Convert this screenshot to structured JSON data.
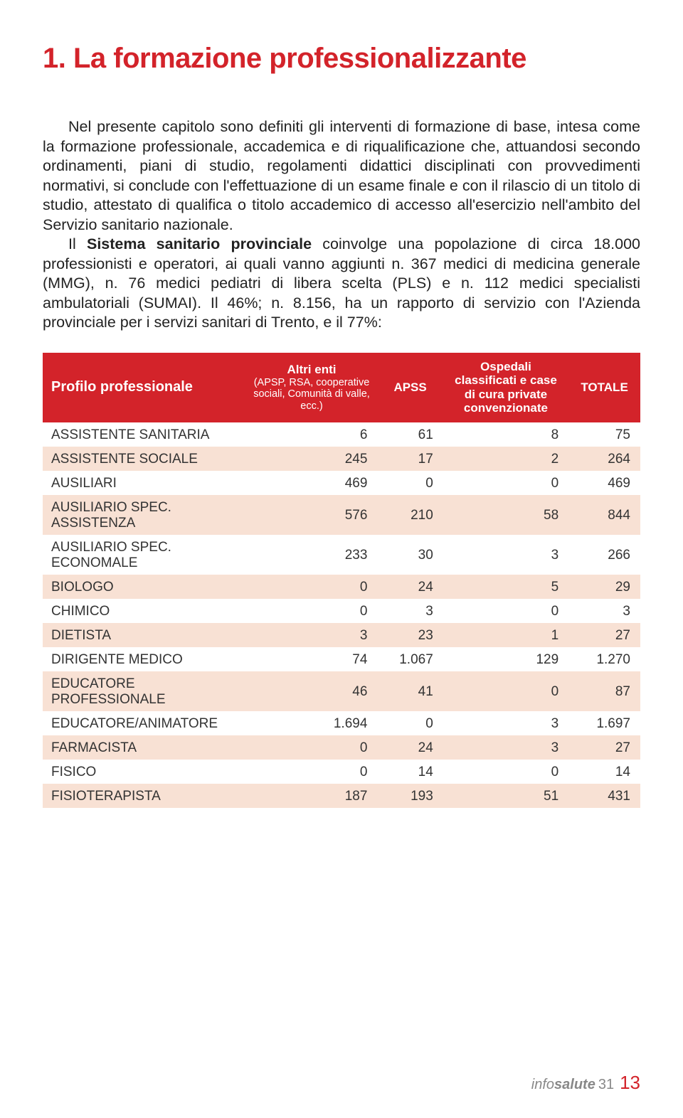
{
  "title": "1. La formazione professionalizzante",
  "paragraphs": {
    "p1": "Nel presente capitolo sono definiti gli interventi di formazione di base, intesa come la formazione professionale, accademica e di riqualificazione che, attuandosi secondo ordinamenti, piani di studio, regolamenti didattici disciplinati con provvedimenti normativi, si conclude con l'effettuazione di un esame finale e con il rilascio di un titolo di studio, attestato di qualifica o titolo accademico di accesso all'esercizio nell'ambito del Servizio sanitario nazionale.",
    "p2_a": "Il ",
    "p2_bold": "Sistema sanitario provinciale",
    "p2_b": " coinvolge una popolazione di circa 18.000 professionisti e operatori, ai quali vanno aggiunti n. 367 medici di medicina generale (MMG), n. 76 medici pediatri di libera scelta (PLS) e n. 112 medici specialisti ambulatoriali (SUMAI). Il 46%; n. 8.156, ha un rapporto di servizio con l'Azienda provinciale per i servizi sanitari di Trento, e il 77%:"
  },
  "table": {
    "headers": {
      "profile": "Profilo professionale",
      "altri_title": "Altri enti",
      "altri_sub": "(APSP, RSA, cooperative sociali, Comunità di valle, ecc.)",
      "apss": "APSS",
      "osp": "Ospedali classificati e case di cura private convenzionate",
      "totale": "TOTALE"
    },
    "col_widths": [
      "34%",
      "22%",
      "11%",
      "21%",
      "12%"
    ],
    "header_bg": "#d3232a",
    "header_color": "#ffffff",
    "row_even_bg": "#f8e1d4",
    "row_odd_bg": "#ffffff",
    "rows": [
      {
        "label": "ASSISTENTE SANITARIA",
        "c1": "6",
        "c2": "61",
        "c3": "8",
        "c4": "75"
      },
      {
        "label": "ASSISTENTE SOCIALE",
        "c1": "245",
        "c2": "17",
        "c3": "2",
        "c4": "264"
      },
      {
        "label": "AUSILIARI",
        "c1": "469",
        "c2": "0",
        "c3": "0",
        "c4": "469"
      },
      {
        "label": "AUSILIARIO SPEC. ASSISTENZA",
        "c1": "576",
        "c2": "210",
        "c3": "58",
        "c4": "844"
      },
      {
        "label": "AUSILIARIO SPEC. ECONOMALE",
        "c1": "233",
        "c2": "30",
        "c3": "3",
        "c4": "266"
      },
      {
        "label": "BIOLOGO",
        "c1": "0",
        "c2": "24",
        "c3": "5",
        "c4": "29"
      },
      {
        "label": "CHIMICO",
        "c1": "0",
        "c2": "3",
        "c3": "0",
        "c4": "3"
      },
      {
        "label": "DIETISTA",
        "c1": "3",
        "c2": "23",
        "c3": "1",
        "c4": "27"
      },
      {
        "label": "DIRIGENTE MEDICO",
        "c1": "74",
        "c2": "1.067",
        "c3": "129",
        "c4": "1.270"
      },
      {
        "label": "EDUCATORE PROFESSIONALE",
        "c1": "46",
        "c2": "41",
        "c3": "0",
        "c4": "87"
      },
      {
        "label": "EDUCATORE/ANIMATORE",
        "c1": "1.694",
        "c2": "0",
        "c3": "3",
        "c4": "1.697"
      },
      {
        "label": "FARMACISTA",
        "c1": "0",
        "c2": "24",
        "c3": "3",
        "c4": "27"
      },
      {
        "label": "FISICO",
        "c1": "0",
        "c2": "14",
        "c3": "0",
        "c4": "14"
      },
      {
        "label": "FISIOTERAPISTA",
        "c1": "187",
        "c2": "193",
        "c3": "51",
        "c4": "431"
      }
    ]
  },
  "footer": {
    "prefix": "info",
    "salute": "salute",
    "issue": "31",
    "page": "13"
  },
  "colors": {
    "accent": "#d3232a",
    "stripe": "#f8e1d4",
    "text": "#1a1a1a",
    "footer_grey": "#888888"
  }
}
